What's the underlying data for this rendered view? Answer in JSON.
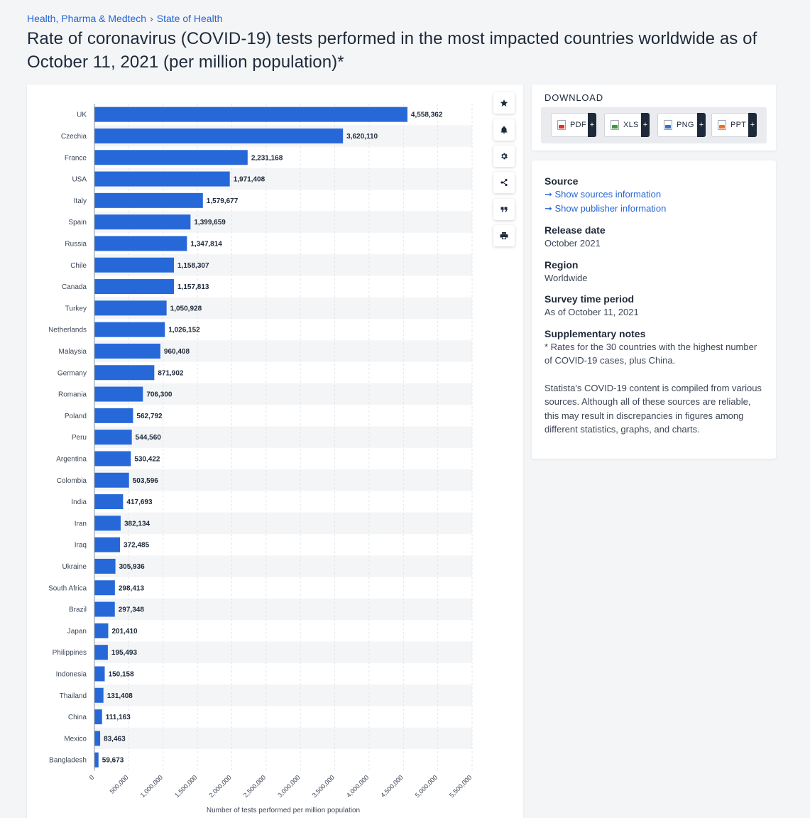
{
  "breadcrumb": {
    "level1": "Health, Pharma & Medtech",
    "separator": "›",
    "level2": "State of Health"
  },
  "title": "Rate of coronavirus (COVID-19) tests performed in the most impacted countries worldwide as of October 11, 2021 (per million population)*",
  "tools": [
    {
      "name": "favorite-star-icon"
    },
    {
      "name": "notification-bell-icon"
    },
    {
      "name": "settings-gear-icon"
    },
    {
      "name": "share-icon"
    },
    {
      "name": "citation-quote-icon"
    },
    {
      "name": "print-icon"
    }
  ],
  "download": {
    "title": "DOWNLOAD",
    "buttons": [
      {
        "label": "PDF",
        "color": "#e0312b"
      },
      {
        "label": "XLS",
        "color": "#3a9a3a"
      },
      {
        "label": "PNG",
        "color": "#3a6fc4"
      },
      {
        "label": "PPT",
        "color": "#e8732a"
      }
    ],
    "plus": "+"
  },
  "info": {
    "source_label": "Source",
    "show_sources": "➞ Show sources information",
    "show_publisher": "➞ Show publisher information",
    "release_label": "Release date",
    "release_value": "October 2021",
    "region_label": "Region",
    "region_value": "Worldwide",
    "survey_label": "Survey time period",
    "survey_value": "As of October 11, 2021",
    "notes_label": "Supplementary notes",
    "notes_value": "* Rates for the 30 countries with the highest number of COVID-19 cases, plus China.",
    "notes_value2": "Statista's COVID-19 content is compiled from various sources. Although all of these sources are reliable, this may result in discrepancies in figures among different statistics, graphs, and charts."
  },
  "colors": {
    "bar": "#2768d9",
    "stripe": "#f4f5f7",
    "grid": "#e3e5e8",
    "label": "#3c4656"
  },
  "chart_data": {
    "type": "bar",
    "orientation": "horizontal",
    "categories": [
      "UK",
      "Czechia",
      "France",
      "USA",
      "Italy",
      "Spain",
      "Russia",
      "Chile",
      "Canada",
      "Turkey",
      "Netherlands",
      "Malaysia",
      "Germany",
      "Romania",
      "Poland",
      "Peru",
      "Argentina",
      "Colombia",
      "India",
      "Iran",
      "Iraq",
      "Ukraine",
      "South Africa",
      "Brazil",
      "Japan",
      "Philippines",
      "Indonesia",
      "Thailand",
      "China",
      "Mexico",
      "Bangladesh"
    ],
    "values": [
      4558362,
      3620110,
      2231168,
      1971408,
      1579677,
      1399659,
      1347814,
      1158307,
      1157813,
      1050928,
      1026152,
      960408,
      871902,
      706300,
      562792,
      544560,
      530422,
      503596,
      417693,
      382134,
      372485,
      305936,
      298413,
      297348,
      201410,
      195493,
      150158,
      131408,
      111163,
      83463,
      59673
    ],
    "value_labels": [
      "4,558,362",
      "3,620,110",
      "2,231,168",
      "1,971,408",
      "1,579,677",
      "1,399,659",
      "1,347,814",
      "1,158,307",
      "1,157,813",
      "1,050,928",
      "1,026,152",
      "960,408",
      "871,902",
      "706,300",
      "562,792",
      "544,560",
      "530,422",
      "503,596",
      "417,693",
      "382,134",
      "372,485",
      "305,936",
      "298,413",
      "297,348",
      "201,410",
      "195,493",
      "150,158",
      "131,408",
      "111,163",
      "83,463",
      "59,673"
    ],
    "xlabel": "Number of tests performed per million population",
    "xlim": [
      0,
      5500000
    ],
    "x_ticks": [
      0,
      500000,
      1000000,
      1500000,
      2000000,
      2500000,
      3000000,
      3500000,
      4000000,
      4500000,
      5000000,
      5500000
    ],
    "x_tick_labels": [
      "0",
      "500,000",
      "1,000,000",
      "1,500,000",
      "2,000,000",
      "2,500,000",
      "3,000,000",
      "3,500,000",
      "4,000,000",
      "4,500,000",
      "5,000,000",
      "5,500,000"
    ],
    "grid": true
  }
}
